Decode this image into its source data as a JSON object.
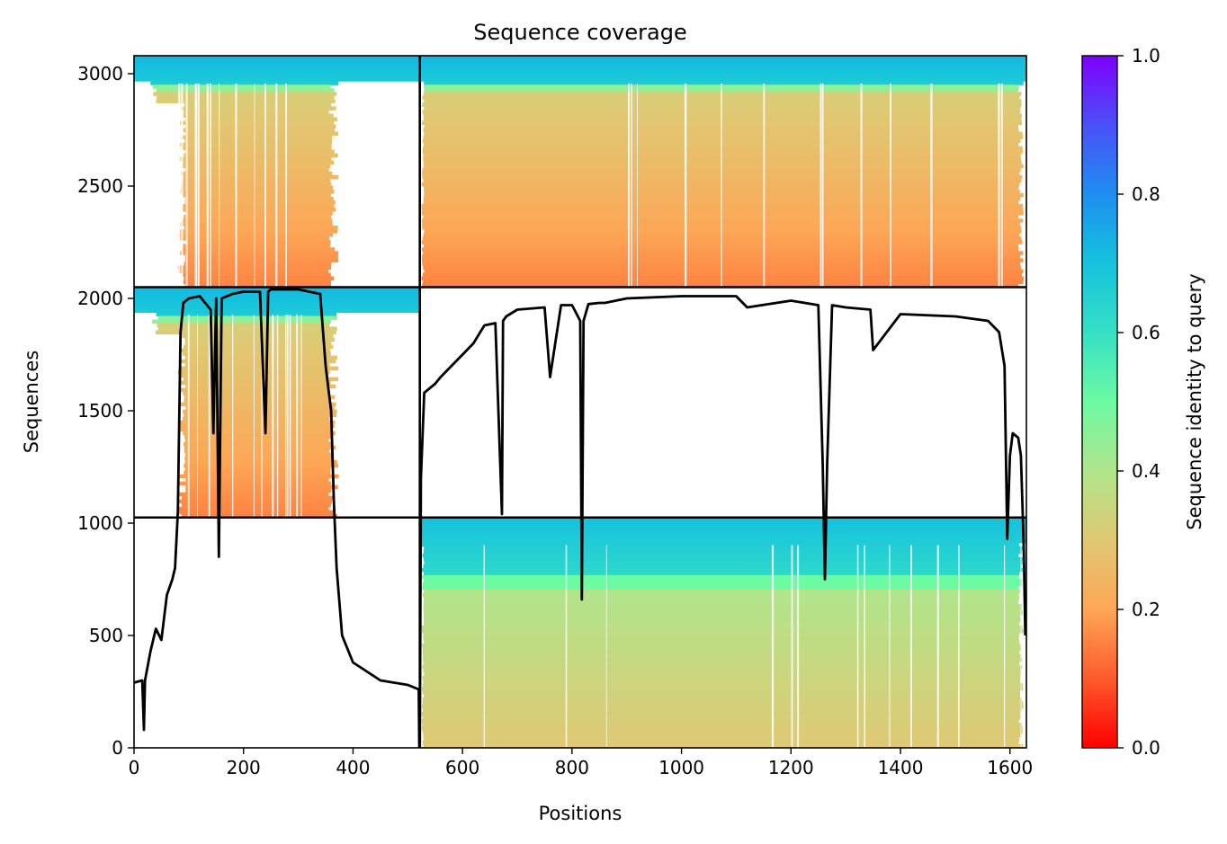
{
  "chart_data": {
    "type": "heatmap",
    "title": "Sequence coverage",
    "xlabel": "Positions",
    "ylabel": "Sequences",
    "xlim": [
      0,
      1630
    ],
    "ylim": [
      0,
      3080
    ],
    "xticks": [
      0,
      200,
      400,
      600,
      800,
      1000,
      1200,
      1400,
      1600
    ],
    "yticks": [
      0,
      500,
      1000,
      1500,
      2000,
      2500,
      3000
    ],
    "chain_boundary_x": 522,
    "block_boundaries_y": [
      1025,
      2050
    ],
    "blocks": [
      {
        "name": "chain1-paired",
        "x": [
          0,
          522
        ],
        "y": [
          2050,
          3080
        ],
        "filled_x": [
          80,
          360
        ]
      },
      {
        "name": "chain2-paired",
        "x": [
          522,
          1630
        ],
        "y": [
          2050,
          3080
        ],
        "filled_x": [
          525,
          1625
        ]
      },
      {
        "name": "chain1-unpaired",
        "x": [
          0,
          522
        ],
        "y": [
          1025,
          2050
        ],
        "filled_x": [
          80,
          360
        ]
      },
      {
        "name": "chain2-unpaired",
        "x": [
          522,
          1630
        ],
        "y": [
          0,
          1025
        ],
        "filled_x": [
          525,
          1625
        ]
      }
    ],
    "coverage_line": {
      "x": [
        0,
        15,
        18,
        20,
        30,
        40,
        50,
        60,
        70,
        75,
        80,
        85,
        90,
        100,
        120,
        140,
        145,
        150,
        155,
        160,
        180,
        200,
        230,
        240,
        245,
        250,
        300,
        340,
        350,
        355,
        360,
        365,
        370,
        380,
        400,
        450,
        500,
        520,
        521,
        522,
        524,
        530,
        550,
        560,
        580,
        600,
        620,
        640,
        660,
        672,
        674,
        680,
        700,
        750,
        760,
        780,
        800,
        815,
        818,
        821,
        830,
        850,
        860,
        900,
        1000,
        1100,
        1120,
        1200,
        1250,
        1258,
        1262,
        1266,
        1275,
        1300,
        1345,
        1350,
        1400,
        1500,
        1560,
        1580,
        1590,
        1595,
        1600,
        1605,
        1610,
        1615,
        1620,
        1625,
        1628
      ],
      "y": [
        290,
        300,
        80,
        300,
        430,
        530,
        480,
        680,
        750,
        800,
        1050,
        1850,
        1980,
        2000,
        2010,
        1950,
        1400,
        2000,
        850,
        2000,
        2020,
        2030,
        2030,
        1400,
        2030,
        2040,
        2040,
        2020,
        1700,
        1600,
        1500,
        1100,
        800,
        500,
        380,
        300,
        280,
        260,
        0,
        0,
        1200,
        1580,
        1620,
        1650,
        1700,
        1750,
        1800,
        1880,
        1890,
        1040,
        1900,
        1920,
        1950,
        1960,
        1650,
        1970,
        1970,
        1900,
        660,
        1900,
        1975,
        1980,
        1980,
        2000,
        2010,
        2010,
        1960,
        1990,
        1970,
        1260,
        750,
        1260,
        1970,
        1960,
        1950,
        1770,
        1930,
        1920,
        1900,
        1850,
        1700,
        930,
        1300,
        1400,
        1390,
        1380,
        1300,
        900,
        500
      ]
    },
    "colorbar": {
      "label": "Sequence identity to query",
      "range": [
        0.0,
        1.0
      ],
      "ticks": [
        "0.0",
        "0.2",
        "0.4",
        "0.6",
        "0.8",
        "1.0"
      ],
      "colormap": "rainbow_r",
      "stops": [
        {
          "v": 0.0,
          "color": "#ff0000"
        },
        {
          "v": 0.1,
          "color": "#ff5a2c"
        },
        {
          "v": 0.2,
          "color": "#fda756"
        },
        {
          "v": 0.3,
          "color": "#e0c873"
        },
        {
          "v": 0.4,
          "color": "#b0e58b"
        },
        {
          "v": 0.5,
          "color": "#6cfaa3"
        },
        {
          "v": 0.6,
          "color": "#36e0c5"
        },
        {
          "v": 0.7,
          "color": "#15c3dd"
        },
        {
          "v": 0.8,
          "color": "#1e8ef0"
        },
        {
          "v": 0.9,
          "color": "#4a50f8"
        },
        {
          "v": 1.0,
          "color": "#7f00ff"
        }
      ]
    }
  }
}
